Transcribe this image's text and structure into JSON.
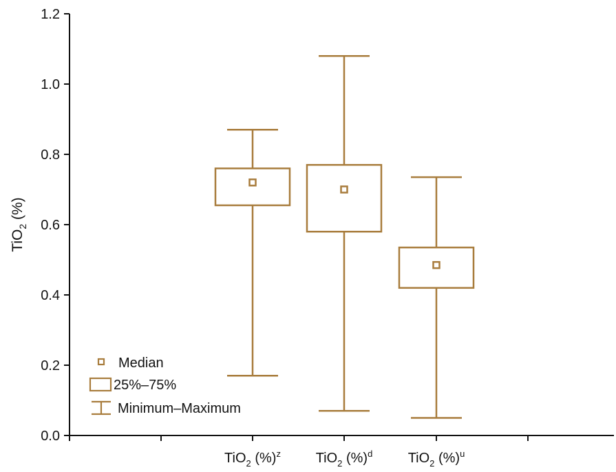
{
  "chart_data": {
    "type": "box",
    "ylabel_main": "TiO",
    "ylabel_sub": "2",
    "ylabel_rest": " (%)",
    "ylim": [
      0.0,
      1.2
    ],
    "yticks": [
      "0.0",
      "0.2",
      "0.4",
      "0.6",
      "0.8",
      "1.0",
      "1.2"
    ],
    "categories": [
      {
        "main": "TiO",
        "sub": "2",
        "rest": " (%)",
        "sup": "z"
      },
      {
        "main": "TiO",
        "sub": "2",
        "rest": " (%)",
        "sup": "d"
      },
      {
        "main": "TiO",
        "sub": "2",
        "rest": " (%)",
        "sup": "u"
      }
    ],
    "boxes": [
      {
        "min": 0.17,
        "q1": 0.655,
        "median": 0.72,
        "q3": 0.76,
        "max": 0.87
      },
      {
        "min": 0.07,
        "q1": 0.58,
        "median": 0.7,
        "q3": 0.77,
        "max": 1.08
      },
      {
        "min": 0.05,
        "q1": 0.42,
        "median": 0.485,
        "q3": 0.535,
        "max": 0.735
      }
    ],
    "legend": {
      "position": "bottom-left",
      "items": [
        "Median",
        "25%–75%",
        "Minimum–Maximum"
      ]
    },
    "colors": {
      "box": "#a87c3c",
      "axis": "#111111"
    },
    "grid": false
  }
}
